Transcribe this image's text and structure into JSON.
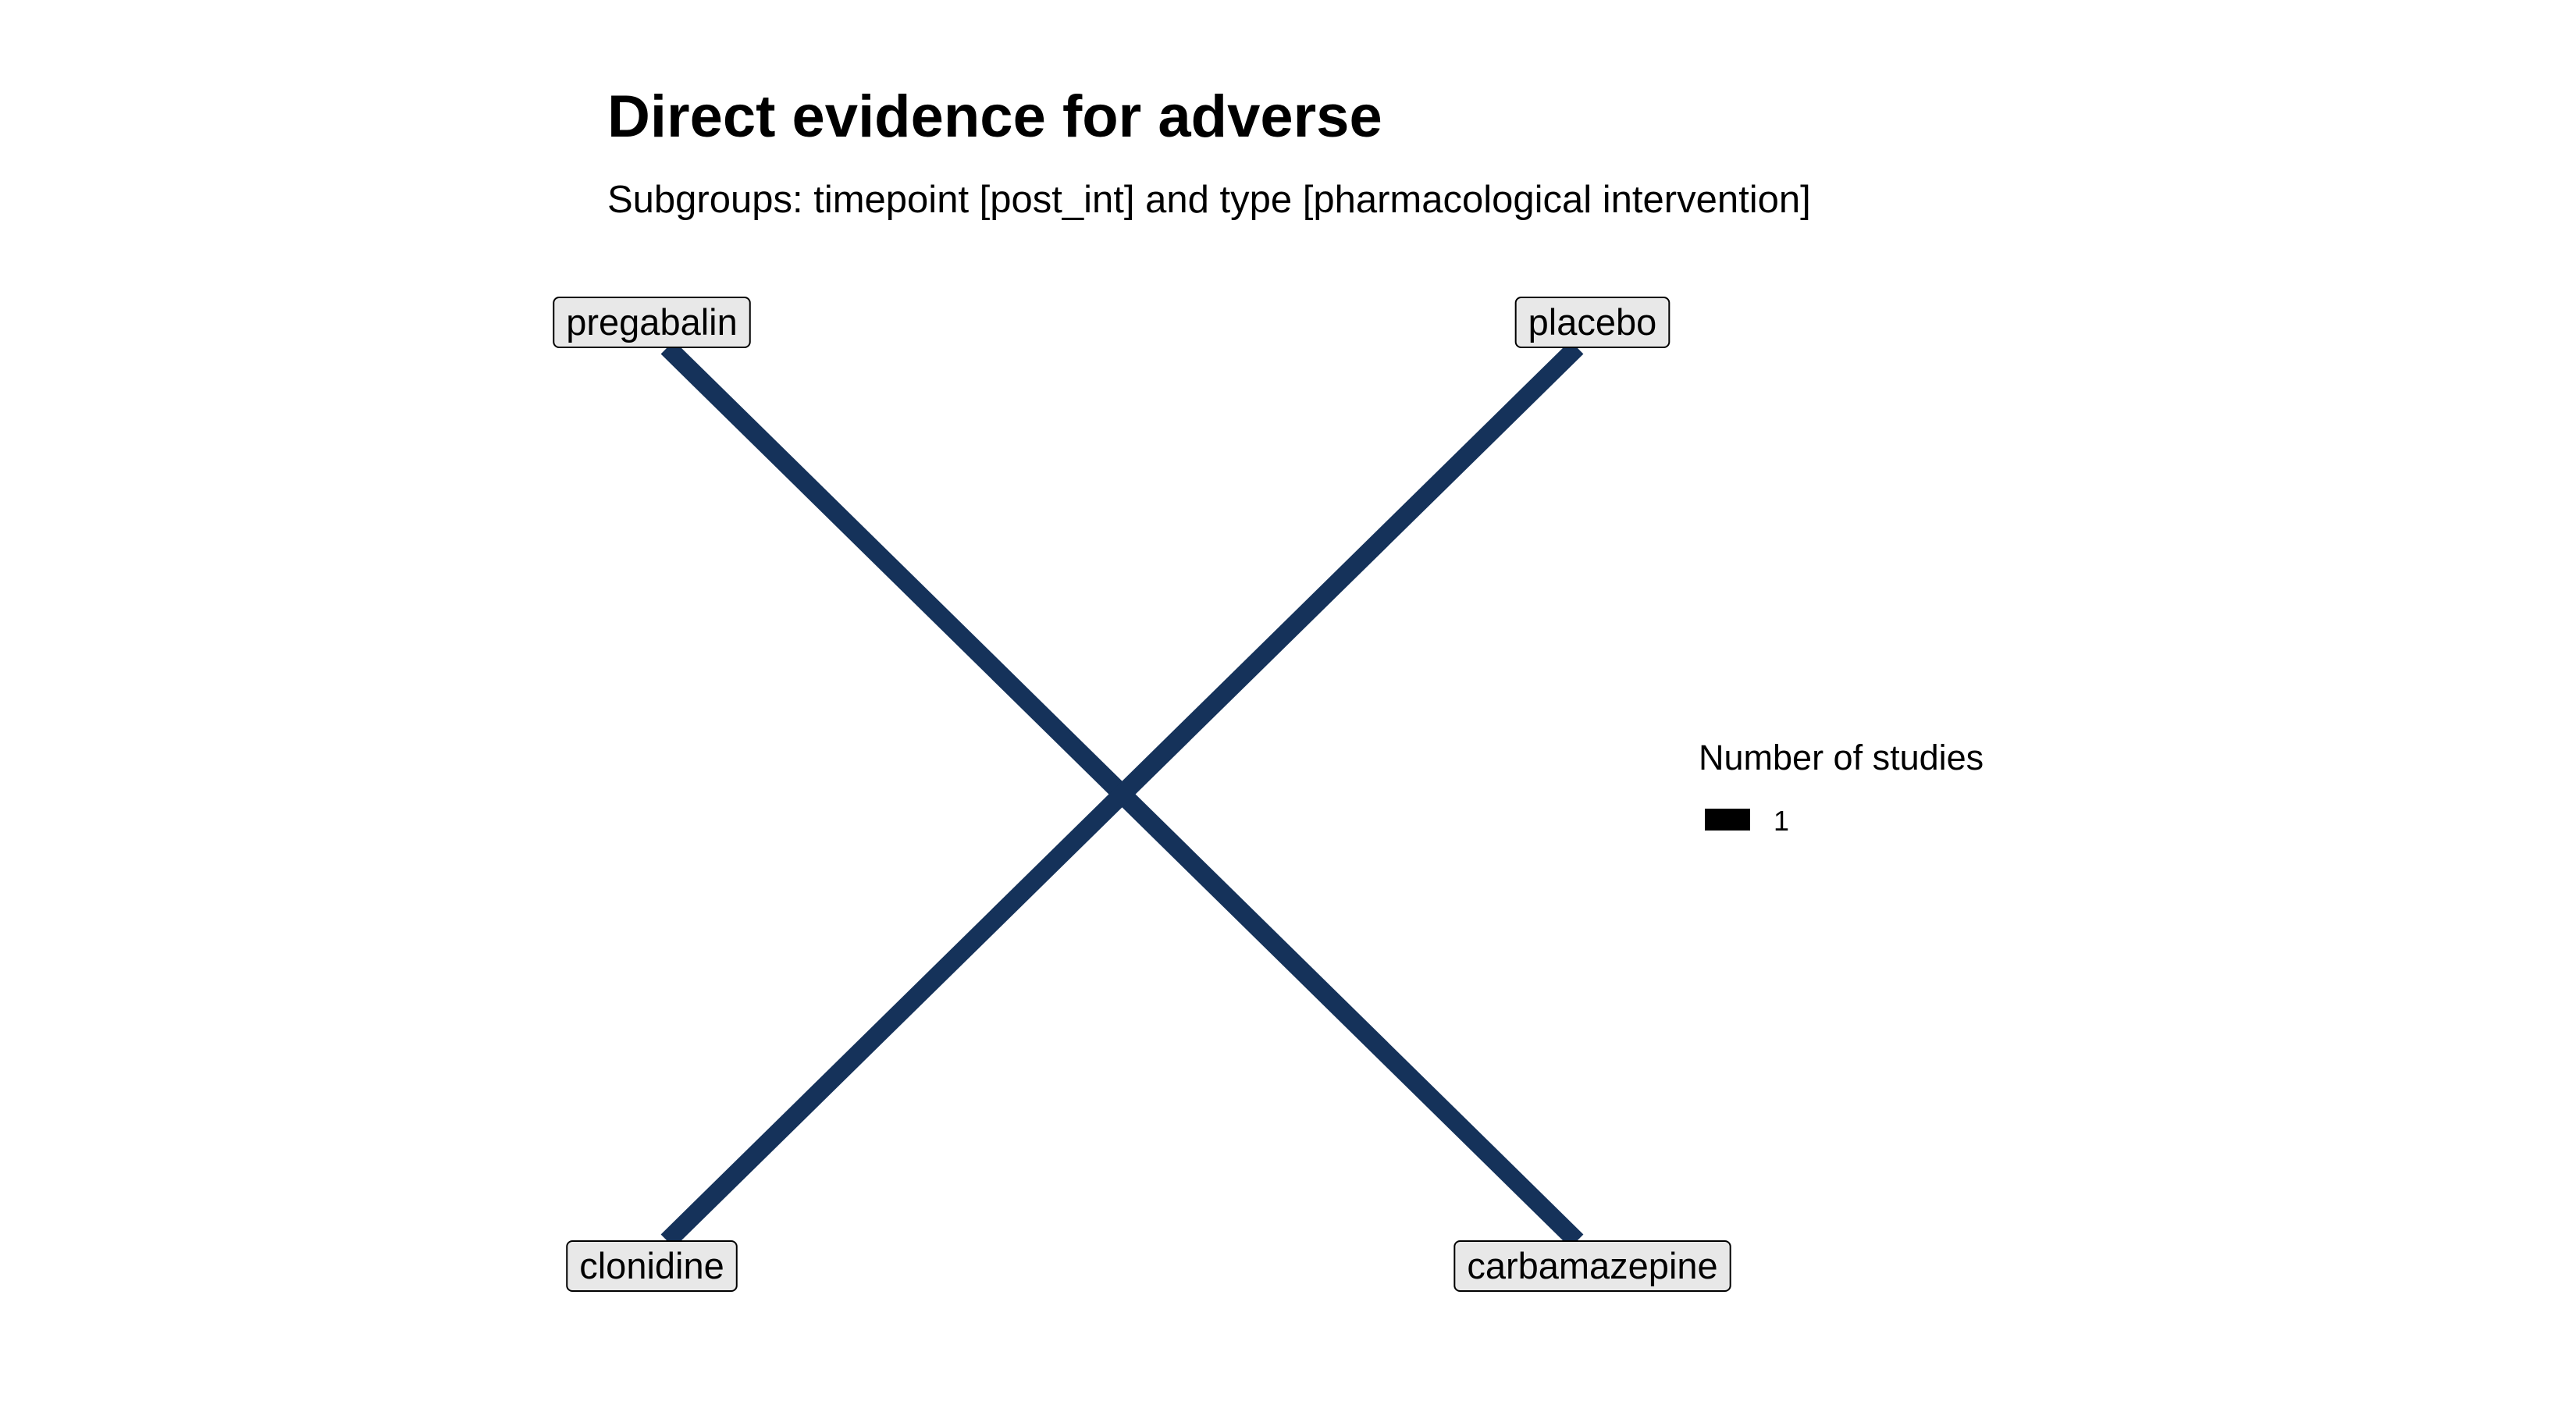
{
  "title": "Direct evidence for adverse",
  "subtitle": "Subgroups: timepoint [post_int] and type [pharmacological intervention]",
  "colors": {
    "edge": "#15325a",
    "node_fill": "#e8e8e8",
    "node_border": "#000000",
    "legend_key": "#000000"
  },
  "nodes": [
    {
      "id": "pregabalin",
      "label": "pregabalin"
    },
    {
      "id": "placebo",
      "label": "placebo"
    },
    {
      "id": "clonidine",
      "label": "clonidine"
    },
    {
      "id": "carbamazepine",
      "label": "carbamazepine"
    }
  ],
  "edges": [
    {
      "from": "pregabalin",
      "to": "carbamazepine",
      "studies": 1
    },
    {
      "from": "placebo",
      "to": "clonidine",
      "studies": 1
    }
  ],
  "legend": {
    "title": "Number of studies",
    "items": [
      {
        "label": "1"
      }
    ]
  }
}
